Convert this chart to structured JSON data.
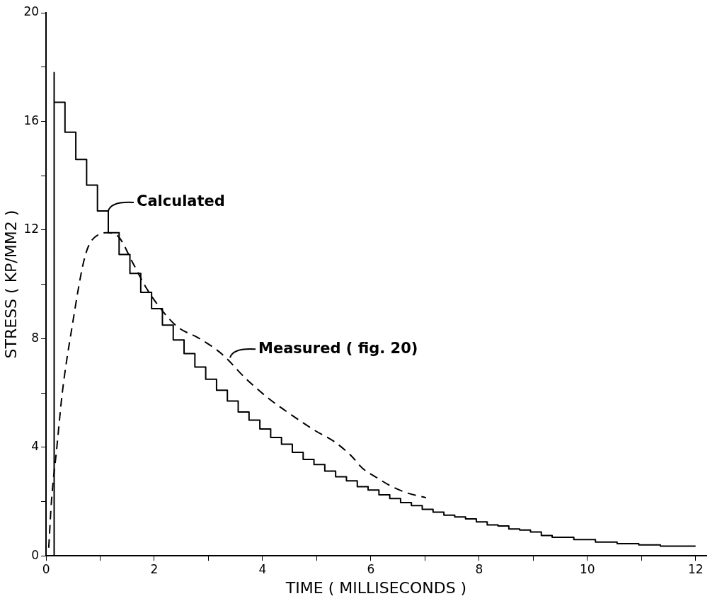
{
  "chart_data": {
    "type": "line",
    "xlabel": "TIME ( MILLISECONDS )",
    "ylabel": "STRESS ( KP/MM2 )",
    "xlim": [
      0,
      12.2
    ],
    "ylim": [
      0,
      20
    ],
    "xticks": [
      0,
      {
        "value": 1,
        "label": null
      },
      2,
      {
        "value": 3,
        "label": null
      },
      4,
      {
        "value": 5,
        "label": null
      },
      6,
      {
        "value": 7,
        "label": null
      },
      8,
      {
        "value": 9,
        "label": null
      },
      10,
      {
        "value": 11,
        "label": null
      },
      12
    ],
    "yticks": [
      0,
      {
        "value": 2,
        "label": null
      },
      4,
      {
        "value": 6,
        "label": null
      },
      8,
      {
        "value": 10,
        "label": null
      },
      12,
      {
        "value": 14,
        "label": null
      },
      16,
      {
        "value": 18,
        "label": null
      },
      20
    ],
    "grid": false,
    "legend": false,
    "series": [
      {
        "type": "step",
        "color": "#000000",
        "line_style": "solid",
        "x": [
          0.15,
          0.15,
          0.35,
          0.55,
          0.75,
          0.95,
          1.15,
          1.35,
          1.55,
          1.75,
          1.95,
          2.15,
          2.35,
          2.55,
          2.75,
          2.95,
          3.15,
          3.35,
          3.55,
          3.75,
          3.95,
          4.15,
          4.35,
          4.55,
          4.75,
          4.95,
          5.15,
          5.35,
          5.55,
          5.75,
          5.95,
          6.15,
          6.35,
          6.55,
          6.75,
          6.95,
          7.15,
          7.35,
          7.55,
          7.75,
          7.95,
          8.15,
          8.35,
          8.55,
          8.75,
          8.95,
          9.15,
          9.35,
          9.75,
          10.15,
          10.55,
          10.95,
          11.35,
          11.75,
          12.0
        ],
        "values": [
          0,
          17.8,
          16.7,
          15.6,
          14.6,
          13.65,
          12.7,
          11.9,
          11.1,
          10.4,
          9.7,
          9.1,
          8.5,
          7.95,
          7.45,
          6.95,
          6.5,
          6.1,
          5.7,
          5.3,
          5.0,
          4.67,
          4.36,
          4.11,
          3.81,
          3.55,
          3.36,
          3.12,
          2.91,
          2.76,
          2.55,
          2.42,
          2.25,
          2.11,
          1.96,
          1.85,
          1.71,
          1.61,
          1.5,
          1.43,
          1.36,
          1.25,
          1.14,
          1.1,
          0.99,
          0.95,
          0.88,
          0.75,
          0.68,
          0.6,
          0.51,
          0.45,
          0.4,
          0.36,
          0.36
        ]
      },
      {
        "type": "line",
        "color": "#000000",
        "line_style": "dashed",
        "x": [
          0.05,
          0.1,
          0.2,
          0.3,
          0.47,
          0.73,
          0.99,
          1.12,
          1.34,
          1.6,
          1.86,
          2.2,
          2.45,
          2.81,
          3.25,
          3.68,
          4.11,
          4.6,
          4.98,
          5.33,
          5.63,
          5.85,
          6.11,
          6.37,
          6.68,
          7.02
        ],
        "values": [
          0.3,
          2,
          4,
          6,
          8.3,
          11.1,
          11.85,
          11.9,
          11.75,
          10.8,
          9.84,
          8.9,
          8.4,
          8.03,
          7.43,
          6.55,
          5.8,
          5.1,
          4.6,
          4.2,
          3.7,
          3.22,
          2.88,
          2.57,
          2.31,
          2.14
        ]
      }
    ],
    "annotations": [
      {
        "text": "Calculated",
        "x": 1.15,
        "y": 12.7
      },
      {
        "text": "Measured ( fig. 20)",
        "x": 3.4,
        "y": 7.3
      }
    ]
  }
}
